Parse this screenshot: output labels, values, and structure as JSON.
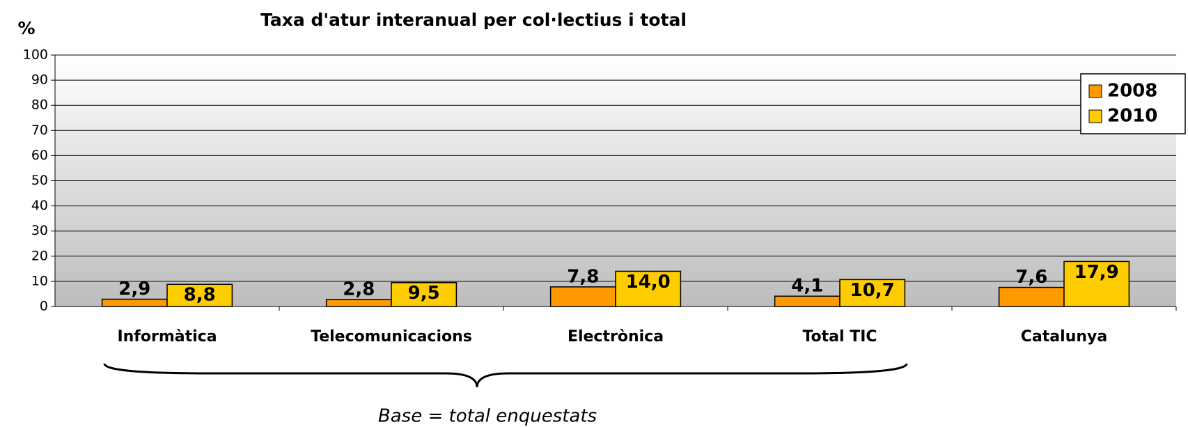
{
  "chart_data": {
    "type": "bar",
    "title": "Taxa d'atur interanual per col·lectius i total",
    "y_label": "%",
    "annotation": "Base = total enquestats",
    "categories": [
      "Informàtica",
      "Telecomunicacions",
      "Electrònica",
      "Total TIC",
      "Catalunya"
    ],
    "series": [
      {
        "name": "2008",
        "color": "#ff9900",
        "values": [
          2.9,
          2.8,
          7.8,
          4.1,
          7.6
        ],
        "value_labels": [
          "2,9",
          "2,8",
          "7,8",
          "4,1",
          "7,6"
        ]
      },
      {
        "name": "2010",
        "color": "#ffcc00",
        "values": [
          8.8,
          9.5,
          14.0,
          10.7,
          17.9
        ],
        "value_labels": [
          "8,8",
          "9,5",
          "14,0",
          "10,7",
          "17,9"
        ]
      }
    ],
    "ylim": [
      0,
      100
    ],
    "yticks": [
      0,
      10,
      20,
      30,
      40,
      50,
      60,
      70,
      80,
      90,
      100
    ],
    "grid": true,
    "legend": "upper right"
  }
}
